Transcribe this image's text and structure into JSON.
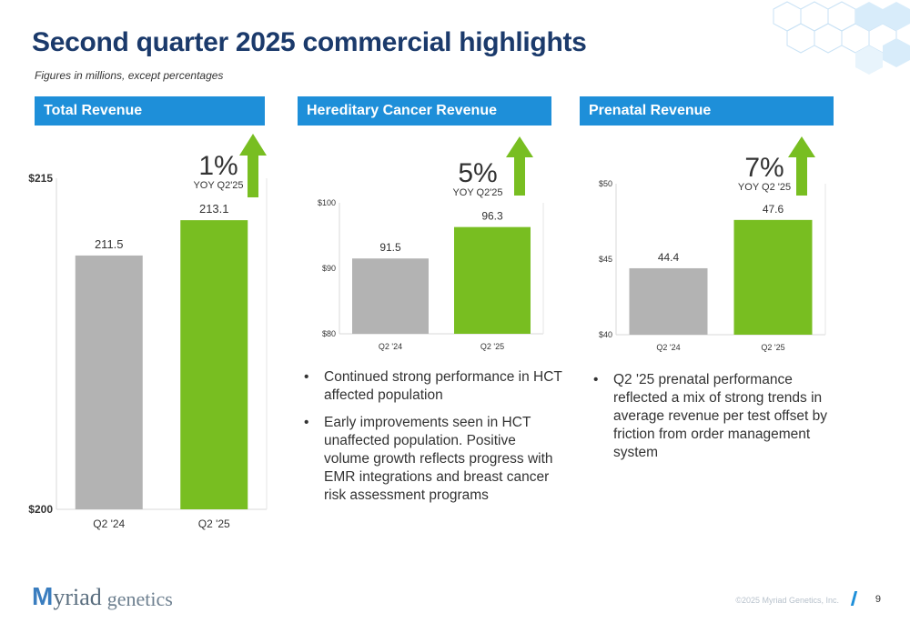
{
  "title": "Second quarter 2025 commercial highlights",
  "subtitle": "Figures in millions, except percentages",
  "colors": {
    "header": "#1e8fd9",
    "bar_prior": "#b3b3b3",
    "bar_current": "#78be21",
    "title": "#1b3a6b"
  },
  "panels": [
    {
      "header": "Total Revenue",
      "yoy_pct": "1%",
      "yoy_label": "YOY Q2'25"
    },
    {
      "header": "Hereditary Cancer Revenue",
      "yoy_pct": "5%",
      "yoy_label": "YOY Q2'25",
      "bullets": [
        "Continued strong performance in HCT affected population",
        "Early improvements seen in HCT unaffected population. Positive volume growth reflects progress with EMR integrations and breast cancer risk assessment programs"
      ]
    },
    {
      "header": "Prenatal Revenue",
      "yoy_pct": "7%",
      "yoy_label": "YOY Q2 '25",
      "bullets": [
        "Q2 '25 prenatal performance reflected a mix of strong trends in average revenue per test offset by friction from order management system"
      ]
    }
  ],
  "chart_data": [
    {
      "type": "bar",
      "categories": [
        "Q2 '24",
        "Q2 '25"
      ],
      "values": [
        211.5,
        213.1
      ],
      "data_labels": [
        "211.5",
        "213.1"
      ],
      "ylim": [
        200,
        215
      ],
      "yticks": [
        "$200",
        "$215"
      ],
      "grid": false
    },
    {
      "type": "bar",
      "categories": [
        "Q2 '24",
        "Q2 '25"
      ],
      "values": [
        91.5,
        96.3
      ],
      "data_labels": [
        "91.5",
        "96.3"
      ],
      "ylim": [
        80,
        100
      ],
      "yticks": [
        "$80",
        "$90",
        "$100"
      ],
      "grid": false
    },
    {
      "type": "bar",
      "categories": [
        "Q2 '24",
        "Q2 '25"
      ],
      "values": [
        44.4,
        47.6
      ],
      "data_labels": [
        "44.4",
        "47.6"
      ],
      "ylim": [
        40,
        50
      ],
      "yticks": [
        "$40",
        "$45",
        "$50"
      ],
      "grid": false
    }
  ],
  "footer": {
    "logo_mark": "M",
    "logo_word": "yriad",
    "logo_sub": "genetics",
    "copyright": "©2025 Myriad Genetics, Inc.",
    "page": "9"
  }
}
